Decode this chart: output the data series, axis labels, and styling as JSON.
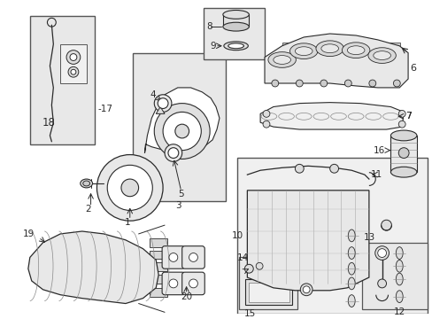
{
  "bg_color": "#ffffff",
  "line_color": "#2a2a2a",
  "fig_width": 4.89,
  "fig_height": 3.6,
  "dpi": 100,
  "gray_fill": "#e8e8e8",
  "label_fs": 7.5
}
